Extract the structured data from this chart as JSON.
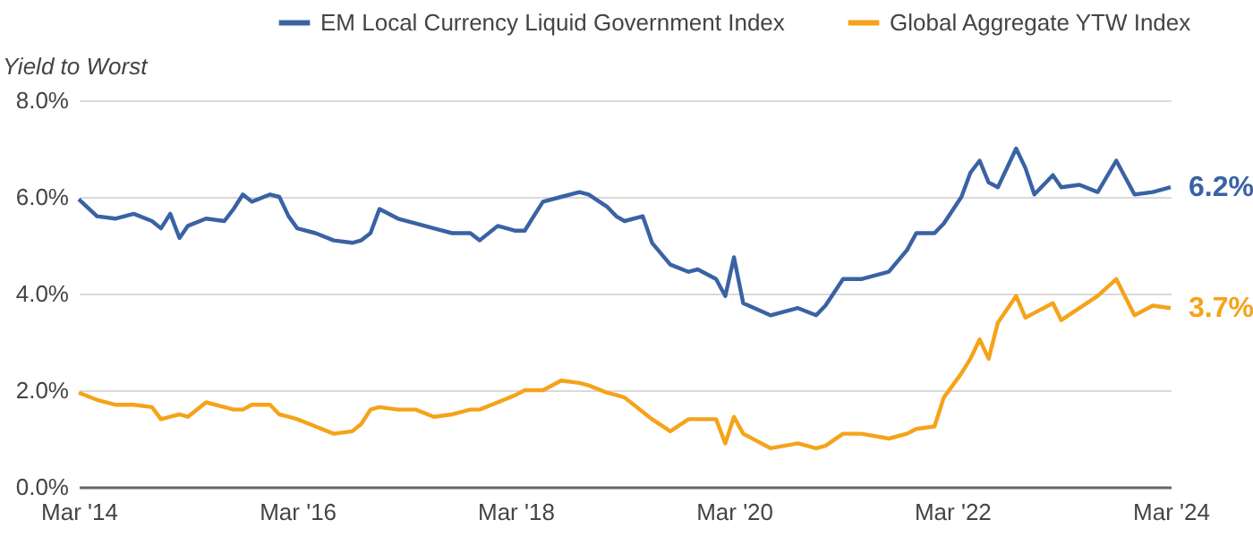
{
  "chart_data": {
    "type": "line",
    "ylabel": "Yield to Worst",
    "x": [
      "2014-03",
      "2014-05",
      "2014-07",
      "2014-09",
      "2014-11",
      "2014-12",
      "2015-01",
      "2015-02",
      "2015-03",
      "2015-05",
      "2015-07",
      "2015-08",
      "2015-09",
      "2015-10",
      "2015-12",
      "2016-01",
      "2016-02",
      "2016-03",
      "2016-05",
      "2016-07",
      "2016-09",
      "2016-10",
      "2016-11",
      "2016-12",
      "2017-02",
      "2017-04",
      "2017-06",
      "2017-08",
      "2017-10",
      "2017-11",
      "2018-01",
      "2018-03",
      "2018-04",
      "2018-05",
      "2018-06",
      "2018-08",
      "2018-10",
      "2018-11",
      "2019-01",
      "2019-02",
      "2019-03",
      "2019-05",
      "2019-06",
      "2019-08",
      "2019-10",
      "2019-11",
      "2020-01",
      "2020-02",
      "2020-03",
      "2020-04",
      "2020-07",
      "2020-10",
      "2020-12",
      "2021-01",
      "2021-03",
      "2021-05",
      "2021-08",
      "2021-10",
      "2021-11",
      "2022-01",
      "2022-02",
      "2022-04",
      "2022-05",
      "2022-06",
      "2022-07",
      "2022-08",
      "2022-10",
      "2022-11",
      "2022-12",
      "2023-02",
      "2023-03",
      "2023-05",
      "2023-07",
      "2023-09",
      "2023-11",
      "2024-01",
      "2024-03"
    ],
    "series": [
      {
        "name": "EM Local Currency Liquid Government Index",
        "color": "#3a62a4",
        "values": [
          5.95,
          5.6,
          5.55,
          5.65,
          5.5,
          5.35,
          5.65,
          5.15,
          5.4,
          5.55,
          5.5,
          5.75,
          6.05,
          5.9,
          6.05,
          6.0,
          5.6,
          5.35,
          5.25,
          5.1,
          5.05,
          5.1,
          5.25,
          5.75,
          5.55,
          5.45,
          5.35,
          5.25,
          5.25,
          5.1,
          5.4,
          5.3,
          5.3,
          5.6,
          5.9,
          6.0,
          6.1,
          6.05,
          5.8,
          5.6,
          5.5,
          5.6,
          5.05,
          4.6,
          4.45,
          4.5,
          4.3,
          3.95,
          4.75,
          3.8,
          3.55,
          3.7,
          3.55,
          3.75,
          4.3,
          4.3,
          4.45,
          4.9,
          5.25,
          5.25,
          5.45,
          6.0,
          6.5,
          6.75,
          6.3,
          6.2,
          7.0,
          6.6,
          6.05,
          6.45,
          6.2,
          6.25,
          6.1,
          6.75,
          6.05,
          6.1,
          6.2
        ]
      },
      {
        "name": "Global Aggregate YTW Index",
        "color": "#f5a31a",
        "values": [
          1.95,
          1.8,
          1.7,
          1.7,
          1.65,
          1.4,
          1.45,
          1.5,
          1.45,
          1.75,
          1.65,
          1.6,
          1.6,
          1.7,
          1.7,
          1.5,
          1.45,
          1.4,
          1.25,
          1.1,
          1.15,
          1.3,
          1.6,
          1.65,
          1.6,
          1.6,
          1.45,
          1.5,
          1.6,
          1.6,
          1.75,
          1.9,
          2.0,
          2.0,
          2.0,
          2.2,
          2.15,
          2.1,
          1.95,
          1.9,
          1.85,
          1.55,
          1.4,
          1.15,
          1.4,
          1.4,
          1.4,
          0.9,
          1.45,
          1.1,
          0.8,
          0.9,
          0.8,
          0.85,
          1.1,
          1.1,
          1.0,
          1.1,
          1.2,
          1.25,
          1.85,
          2.35,
          2.65,
          3.05,
          2.65,
          3.4,
          3.95,
          3.5,
          3.6,
          3.8,
          3.45,
          3.7,
          3.95,
          4.3,
          3.55,
          3.75,
          3.7
        ]
      }
    ],
    "xlim": [
      "2014-03",
      "2024-03"
    ],
    "xticks": [
      {
        "value": "2014-03",
        "label": "Mar '14"
      },
      {
        "value": "2016-03",
        "label": "Mar '16"
      },
      {
        "value": "2018-03",
        "label": "Mar '18"
      },
      {
        "value": "2020-03",
        "label": "Mar '20"
      },
      {
        "value": "2022-03",
        "label": "Mar '22"
      },
      {
        "value": "2024-03",
        "label": "Mar '24"
      }
    ],
    "ylim": [
      0,
      8
    ],
    "yticks": [
      {
        "value": 0,
        "label": "0.0%"
      },
      {
        "value": 2,
        "label": "2.0%"
      },
      {
        "value": 4,
        "label": "4.0%"
      },
      {
        "value": 6,
        "label": "6.0%"
      },
      {
        "value": 8,
        "label": "8.0%"
      }
    ],
    "annotations": [
      {
        "text": "6.2%",
        "x": "2024-03",
        "y": 6.2
      },
      {
        "text": "3.7%",
        "x": "2024-03",
        "y": 3.7
      }
    ],
    "grid": "y",
    "legend": "top"
  }
}
